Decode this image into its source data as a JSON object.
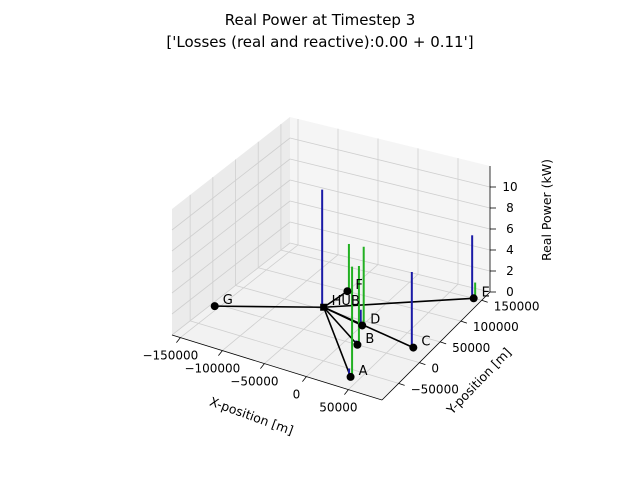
{
  "chart_data": {
    "type": "3d-line",
    "title": "Real Power at Timestep 3",
    "subtitle": "['Losses (real and reactive):0.00 + 0.11']",
    "xlabel": "X-position [m]",
    "ylabel": "Y-position [m]",
    "zlabel": "Real Power (kW)",
    "xlim": [
      -160000,
      90000
    ],
    "ylim": [
      -90000,
      170000
    ],
    "zlim": [
      0,
      12
    ],
    "x_ticks": [
      -150000,
      -100000,
      -50000,
      0,
      50000
    ],
    "x_tick_labels": [
      "−150000",
      "−100000",
      "−50000",
      "0",
      "50000"
    ],
    "y_ticks": [
      -50000,
      0,
      50000,
      100000,
      150000
    ],
    "y_tick_labels": [
      "−50000",
      "0",
      "50000",
      "100000",
      "150000"
    ],
    "z_ticks": [
      0,
      2,
      4,
      6,
      8,
      10
    ],
    "z_tick_labels": [
      "0",
      "2",
      "4",
      "6",
      "8",
      "10"
    ],
    "grid": true,
    "nodes": [
      {
        "label": "HUB",
        "x": -55000,
        "y": 55000
      },
      {
        "label": "A",
        "x": 40000,
        "y": -65000
      },
      {
        "label": "B",
        "x": 15000,
        "y": 0
      },
      {
        "label": "C",
        "x": 70000,
        "y": 25000
      },
      {
        "label": "D",
        "x": 0,
        "y": 40000
      },
      {
        "label": "E",
        "x": 80000,
        "y": 150000
      },
      {
        "label": "F",
        "x": -50000,
        "y": 100000
      },
      {
        "label": "G",
        "x": -155000,
        "y": -5000
      }
    ],
    "edges": [
      [
        "HUB",
        "A"
      ],
      [
        "HUB",
        "B"
      ],
      [
        "HUB",
        "C"
      ],
      [
        "HUB",
        "D"
      ],
      [
        "HUB",
        "E"
      ],
      [
        "HUB",
        "F"
      ],
      [
        "HUB",
        "G"
      ]
    ],
    "power_bars": [
      {
        "node": "HUB",
        "series": "blue",
        "value": 11.2
      },
      {
        "node": "F",
        "series": "green",
        "value": 4.5
      },
      {
        "node": "D",
        "series": "green",
        "value": 7.5
      },
      {
        "node": "D",
        "series": "blue",
        "value": 1.5
      },
      {
        "node": "B",
        "series": "green",
        "value": 7.5
      },
      {
        "node": "B",
        "series": "blue",
        "value": 0.4
      },
      {
        "node": "A",
        "series": "green",
        "value": 10.5
      },
      {
        "node": "A",
        "series": "blue",
        "value": 0.8
      },
      {
        "node": "C",
        "series": "blue",
        "value": 7.2
      },
      {
        "node": "E",
        "series": "blue",
        "value": 6.0
      },
      {
        "node": "E",
        "series": "green",
        "value": 1.5
      }
    ],
    "colors": {
      "blue": "#1a1aa6",
      "green": "#22b022",
      "edge": "#000000"
    }
  }
}
